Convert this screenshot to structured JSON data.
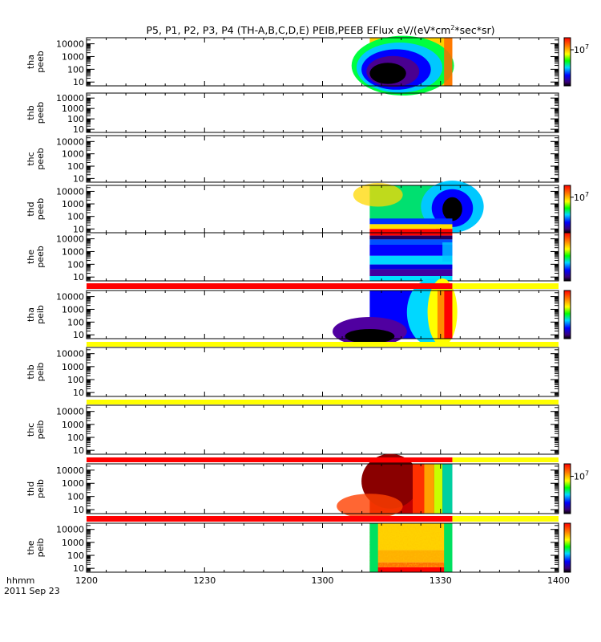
{
  "chart_data": {
    "type": "heatmap",
    "title": "P5, P1, P2, P3, P4 (TH-A,B,C,D,E) PEIB,PEEB EFlux eV/(eV*cm",
    "title_sup": "2",
    "title_tail": "*sec*sr)",
    "x_axis": {
      "label": "hhmm",
      "date": "2011 Sep 23",
      "ticks": [
        "1200",
        "1230",
        "1300",
        "1330",
        "1400"
      ],
      "tick_minutes": [
        0,
        30,
        60,
        90,
        120
      ],
      "range_minutes": [
        0,
        120
      ]
    },
    "y_axis": {
      "scale": "log",
      "ticks": [
        "10",
        "100",
        "1000",
        "10000"
      ],
      "tick_values": [
        10,
        100,
        1000,
        10000
      ],
      "range": [
        5,
        30000
      ]
    },
    "colorbar_label_base": "10",
    "colorbar_label_exp": "7",
    "data_window_minutes": [
      72,
      93
    ],
    "panels": [
      {
        "name": "tha_peeb",
        "label": [
          "tha",
          "peeb"
        ],
        "has_data": true,
        "pattern": "center-dark",
        "colorbar": true,
        "colorbar_label": true
      },
      {
        "name": "thb_peeb",
        "label": [
          "thb",
          "peeb"
        ],
        "has_data": false
      },
      {
        "name": "thc_peeb",
        "label": [
          "thc",
          "peeb"
        ],
        "has_data": false
      },
      {
        "name": "thd_peeb",
        "label": [
          "thd",
          "peeb"
        ],
        "has_data": true,
        "pattern": "green-right-dark",
        "colorbar": true,
        "colorbar_label": true
      },
      {
        "name": "the_peeb",
        "label": [
          "the",
          "peeb"
        ],
        "has_data": true,
        "pattern": "blue-bands",
        "colorbar": true,
        "colorbar_label": false
      },
      {
        "name": "tha_peib",
        "label": [
          "tha",
          "peib"
        ],
        "has_data": true,
        "pattern": "blue-to-red",
        "colorbar": true,
        "colorbar_label": false
      },
      {
        "name": "thb_peib",
        "label": [
          "thb",
          "peib"
        ],
        "has_data": false
      },
      {
        "name": "thc_peib",
        "label": [
          "thc",
          "peib"
        ],
        "has_data": false
      },
      {
        "name": "thd_peib",
        "label": [
          "thd",
          "peib"
        ],
        "has_data": true,
        "pattern": "dark-red",
        "colorbar": true,
        "colorbar_label": true
      },
      {
        "name": "the_peib",
        "label": [
          "the",
          "peib"
        ],
        "has_data": true,
        "pattern": "noisy-yellow",
        "colorbar": true,
        "colorbar_label": false
      }
    ],
    "status_bars": [
      {
        "after_panel": 4,
        "segments": [
          {
            "from": 0,
            "to": 93,
            "color": "#ff0000"
          },
          {
            "from": 93,
            "to": 120,
            "color": "#ffff00"
          }
        ]
      },
      {
        "after_panel": 5,
        "segments": [
          {
            "from": 0,
            "to": 120,
            "color": "#ffff00"
          }
        ]
      },
      {
        "after_panel": 6,
        "segments": [
          {
            "from": 0,
            "to": 120,
            "color": "#ffff00"
          }
        ]
      },
      {
        "after_panel": 7,
        "segments": [
          {
            "from": 0,
            "to": 93,
            "color": "#ff0000"
          },
          {
            "from": 93,
            "to": 120,
            "color": "#ffff00"
          }
        ]
      },
      {
        "after_panel": 8,
        "segments": [
          {
            "from": 0,
            "to": 93,
            "color": "#ff0000"
          },
          {
            "from": 93,
            "to": 120,
            "color": "#ffff00"
          }
        ]
      }
    ]
  }
}
